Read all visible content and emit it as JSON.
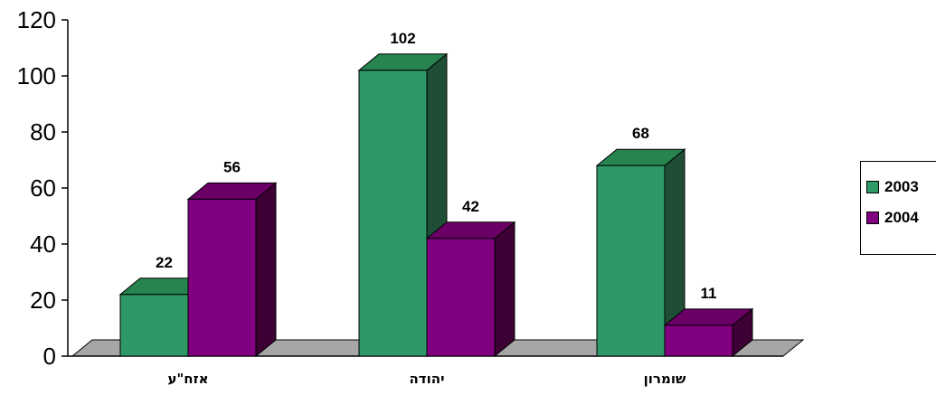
{
  "chart_data": {
    "type": "bar",
    "categories": [
      "אזח\"ע",
      "יהודה",
      "שומרון"
    ],
    "series": [
      {
        "name": "2003",
        "values": [
          22,
          102,
          68
        ],
        "color": "#2e9966",
        "side_color": "#1e4f36",
        "top_color": "#27844f"
      },
      {
        "name": "2004",
        "values": [
          56,
          42,
          11
        ],
        "color": "#800080",
        "side_color": "#3d0035",
        "top_color": "#6a0066"
      }
    ],
    "y_ticks": [
      "0",
      "20",
      "40",
      "60",
      "80",
      "100",
      "120"
    ],
    "ylim": [
      0,
      120
    ],
    "floor_color": "#a6a6a6",
    "legend_position": "right"
  }
}
